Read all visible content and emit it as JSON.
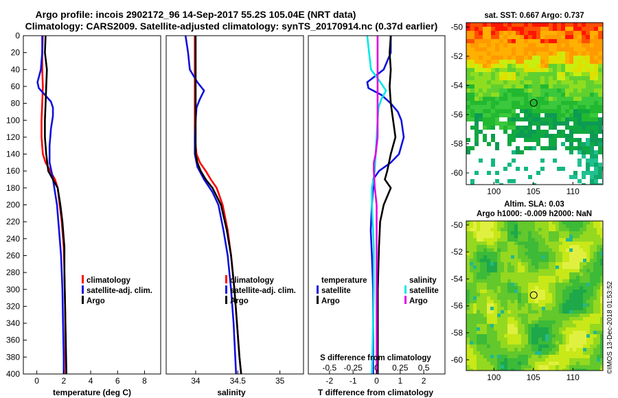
{
  "header": {
    "title_line1": "Argo profile: incois 2902172_96 14-Sep-2017 55.2S 105.04E (NRT data)",
    "title_line2": "Climatology: CARS2009. Satellite-adjusted climatology: synTS_20170914.nc (0.37d earlier)"
  },
  "footer": {
    "credit": "©IMOS 13-Dec-2018 01:53:52"
  },
  "colors": {
    "climatology": "#ff0000",
    "satellite": "#1010e0",
    "argo": "#000000",
    "salinity_satellite": "#00e8e8",
    "salinity_argo": "#e000e0"
  },
  "chart_data": [
    {
      "type": "line",
      "name": "temperature",
      "xlabel": "temperature (deg C)",
      "xlim": [
        -1,
        9.2
      ],
      "xticks": [
        "0",
        "2",
        "4",
        "6",
        "8"
      ],
      "ylim": [
        0,
        400
      ],
      "yticks": [
        "0",
        "20",
        "40",
        "60",
        "80",
        "100",
        "120",
        "140",
        "160",
        "180",
        "200",
        "220",
        "240",
        "260",
        "280",
        "300",
        "320",
        "340",
        "360",
        "380",
        "400"
      ],
      "legend": [
        "climatology",
        "satellite-adj. clim.",
        "Argo"
      ],
      "series": [
        {
          "name": "climatology",
          "color": "#ff0000",
          "depth": [
            0,
            20,
            40,
            60,
            80,
            100,
            120,
            140,
            150,
            160,
            170,
            180,
            200,
            220,
            250,
            280,
            320,
            360,
            400
          ],
          "values": [
            0.45,
            0.4,
            0.4,
            0.45,
            0.4,
            0.35,
            0.35,
            0.45,
            0.65,
            1.0,
            1.35,
            1.55,
            1.7,
            1.85,
            2.0,
            2.05,
            2.1,
            2.12,
            2.15
          ]
        },
        {
          "name": "satellite-adj. clim.",
          "color": "#1010e0",
          "depth": [
            0,
            20,
            40,
            55,
            62,
            70,
            78,
            85,
            95,
            110,
            130,
            150,
            165,
            180,
            200,
            230,
            260,
            300,
            340,
            380,
            400
          ],
          "values": [
            0.4,
            0.4,
            0.3,
            0.05,
            0.15,
            0.6,
            1.05,
            1.2,
            1.2,
            1.05,
            0.95,
            0.95,
            1.15,
            1.3,
            1.5,
            1.65,
            1.8,
            1.9,
            1.95,
            2.0,
            2.0
          ]
        },
        {
          "name": "Argo",
          "color": "#000000",
          "depth": [
            0,
            20,
            40,
            60,
            80,
            100,
            120,
            140,
            160,
            170,
            180,
            200,
            220,
            250,
            280,
            320,
            360,
            400
          ],
          "values": [
            0.65,
            0.6,
            0.75,
            0.7,
            0.65,
            0.6,
            0.6,
            0.7,
            0.85,
            1.2,
            1.55,
            1.75,
            1.9,
            2.05,
            2.05,
            2.1,
            2.15,
            2.2
          ]
        }
      ]
    },
    {
      "type": "line",
      "name": "salinity",
      "xlabel": "salinity",
      "xlim": [
        33.65,
        35.28
      ],
      "xticks": [
        "34",
        "34.5",
        "35"
      ],
      "ylim": [
        0,
        400
      ],
      "legend": [
        "climatology",
        "satellite-adj. clim.",
        "Argo"
      ],
      "series": [
        {
          "name": "climatology",
          "color": "#ff0000",
          "depth": [
            0,
            40,
            80,
            120,
            140,
            150,
            160,
            170,
            180,
            200,
            230,
            260,
            300,
            340,
            380,
            400
          ],
          "values": [
            33.99,
            33.99,
            33.99,
            33.99,
            34.01,
            34.05,
            34.12,
            34.18,
            34.25,
            34.32,
            34.38,
            34.42,
            34.46,
            34.49,
            34.52,
            34.54
          ]
        },
        {
          "name": "satellite-adj. clim.",
          "color": "#1010e0",
          "depth": [
            0,
            20,
            40,
            55,
            65,
            75,
            85,
            100,
            120,
            140,
            155,
            170,
            185,
            200,
            230,
            260,
            300,
            340,
            380,
            400
          ],
          "values": [
            33.88,
            33.91,
            33.93,
            34.02,
            34.1,
            34.05,
            34.01,
            34.0,
            33.99,
            33.99,
            34.02,
            34.1,
            34.2,
            34.27,
            34.33,
            34.38,
            34.42,
            34.45,
            34.47,
            34.48
          ]
        },
        {
          "name": "Argo",
          "color": "#000000",
          "depth": [
            0,
            40,
            80,
            120,
            140,
            150,
            160,
            170,
            180,
            200,
            230,
            260,
            300,
            340,
            380,
            400
          ],
          "values": [
            34.0,
            34.0,
            34.0,
            34.0,
            34.0,
            34.02,
            34.06,
            34.12,
            34.2,
            34.3,
            34.37,
            34.42,
            34.46,
            34.49,
            34.52,
            34.54
          ]
        }
      ]
    },
    {
      "type": "line",
      "name": "difference from climatology",
      "xlabel": "T difference from climatology",
      "xlim": [
        -2.9,
        2.9
      ],
      "xticks": [
        "-2",
        "-1",
        "0",
        "1",
        "2"
      ],
      "top_axis_label": "S difference from climatology",
      "top_ticks": [
        "-0.5",
        "-0.25",
        "0",
        "0.25",
        "0.5"
      ],
      "ylim": [
        0,
        400
      ],
      "legend_temperature_title": "temperature",
      "legend_salinity_title": "salinity",
      "legend_temperature": [
        "satellite",
        "Argo"
      ],
      "legend_salinity": [
        "satellite",
        "Argo"
      ],
      "series": [
        {
          "name": "T satellite",
          "color": "#1010e0",
          "depth": [
            0,
            20,
            40,
            55,
            62,
            70,
            80,
            90,
            100,
            120,
            140,
            150,
            160,
            170,
            180,
            200,
            230,
            260,
            300,
            400
          ],
          "values": [
            0.6,
            0.6,
            0.3,
            -0.4,
            -0.35,
            0.2,
            0.6,
            0.9,
            1.05,
            1.15,
            0.95,
            0.6,
            0.1,
            -0.15,
            -0.15,
            -0.2,
            -0.25,
            -0.2,
            -0.15,
            -0.15
          ]
        },
        {
          "name": "T Argo",
          "color": "#000000",
          "depth": [
            0,
            20,
            40,
            60,
            80,
            100,
            120,
            140,
            160,
            170,
            180,
            200,
            220,
            250,
            300,
            400
          ],
          "values": [
            0.6,
            0.55,
            0.6,
            0.55,
            0.6,
            0.7,
            0.8,
            0.6,
            0.45,
            0.35,
            0.6,
            0.3,
            0.15,
            0.1,
            0.05,
            0.05
          ]
        },
        {
          "name": "S satellite",
          "color": "#00e8e8",
          "depth": [
            0,
            20,
            40,
            55,
            65,
            75,
            85,
            100,
            120,
            140,
            160,
            180,
            200,
            250,
            300,
            400
          ],
          "values": [
            -0.1,
            -0.08,
            -0.06,
            0.04,
            0.1,
            0.05,
            0.02,
            0.01,
            0.0,
            -0.01,
            -0.02,
            -0.05,
            -0.05,
            -0.03,
            -0.03,
            -0.05
          ]
        },
        {
          "name": "S Argo",
          "color": "#e000e0",
          "depth": [
            0,
            40,
            80,
            120,
            140,
            150,
            160,
            180,
            200,
            300,
            400
          ],
          "values": [
            0.01,
            0.01,
            0.01,
            0.01,
            -0.01,
            -0.03,
            -0.03,
            -0.02,
            0.0,
            0.0,
            0.0
          ]
        }
      ]
    },
    {
      "type": "heatmap",
      "name": "sst map",
      "title": "sat. SST: 0.667 Argo: 0.737",
      "xticks": [
        "100",
        "105",
        "110"
      ],
      "yticks": [
        "-50",
        "-52",
        "-54",
        "-56",
        "-58",
        "-60"
      ],
      "xlim": [
        96.5,
        113.8
      ],
      "ylim": [
        -60.8,
        -49.7
      ],
      "marker": {
        "lon": 105.04,
        "lat": -55.2
      }
    },
    {
      "type": "heatmap",
      "name": "sla map",
      "title": "Altim. SLA: 0.03",
      "subtitle": "Argo h1000: -0.009 h2000: NaN",
      "xticks": [
        "100",
        "105",
        "110"
      ],
      "yticks": [
        "-50",
        "-52",
        "-54",
        "-56",
        "-58",
        "-60"
      ],
      "xlim": [
        96.5,
        113.8
      ],
      "ylim": [
        -60.8,
        -49.7
      ],
      "marker": {
        "lon": 105.04,
        "lat": -55.2
      }
    }
  ]
}
